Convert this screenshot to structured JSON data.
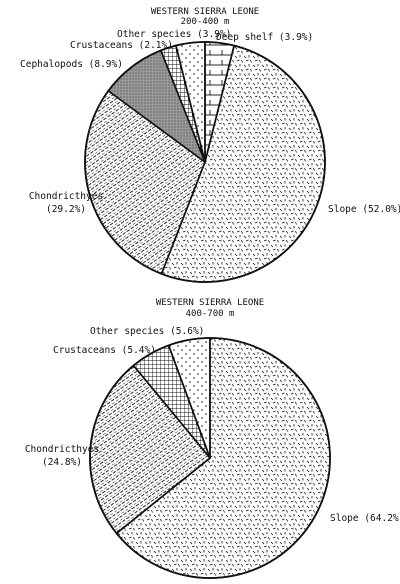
{
  "colors": {
    "ink": "#111111",
    "paper": "#ffffff",
    "cephalopods_fill": "#9a9a9a"
  },
  "chart_data": [
    {
      "type": "pie",
      "title": "WESTERN SIERRA LEONE",
      "subtitle": "200-400 m",
      "slices": [
        {
          "label": "Deep shelf (3.9%)",
          "value": 3.9,
          "pattern": "brick"
        },
        {
          "label": "Slope (52.0%)",
          "value": 52.0,
          "pattern": "dashes"
        },
        {
          "label": "Chondricthyes (29.2%)",
          "value": 29.2,
          "pattern": "diagonal-lines"
        },
        {
          "label": "Cephalopods (8.9%)",
          "value": 8.9,
          "pattern": "gray-dots"
        },
        {
          "label": "Crustaceans (2.1%)",
          "value": 2.1,
          "pattern": "crosshatch"
        },
        {
          "label": "Other species (3.9%)",
          "value": 3.9,
          "pattern": "sparse-dots"
        }
      ]
    },
    {
      "type": "pie",
      "title": "WESTERN SIERRA LEONE",
      "subtitle": "400-700 m",
      "slices": [
        {
          "label": "Slope (64.2%)",
          "value": 64.2,
          "pattern": "dashes"
        },
        {
          "label": "Chondricthyes (24.8%)",
          "value": 24.8,
          "pattern": "diagonal-lines"
        },
        {
          "label": "Crustaceans (5.4%)",
          "value": 5.4,
          "pattern": "crosshatch"
        },
        {
          "label": "Other species (5.6%)",
          "value": 5.6,
          "pattern": "sparse-dots"
        }
      ]
    }
  ]
}
